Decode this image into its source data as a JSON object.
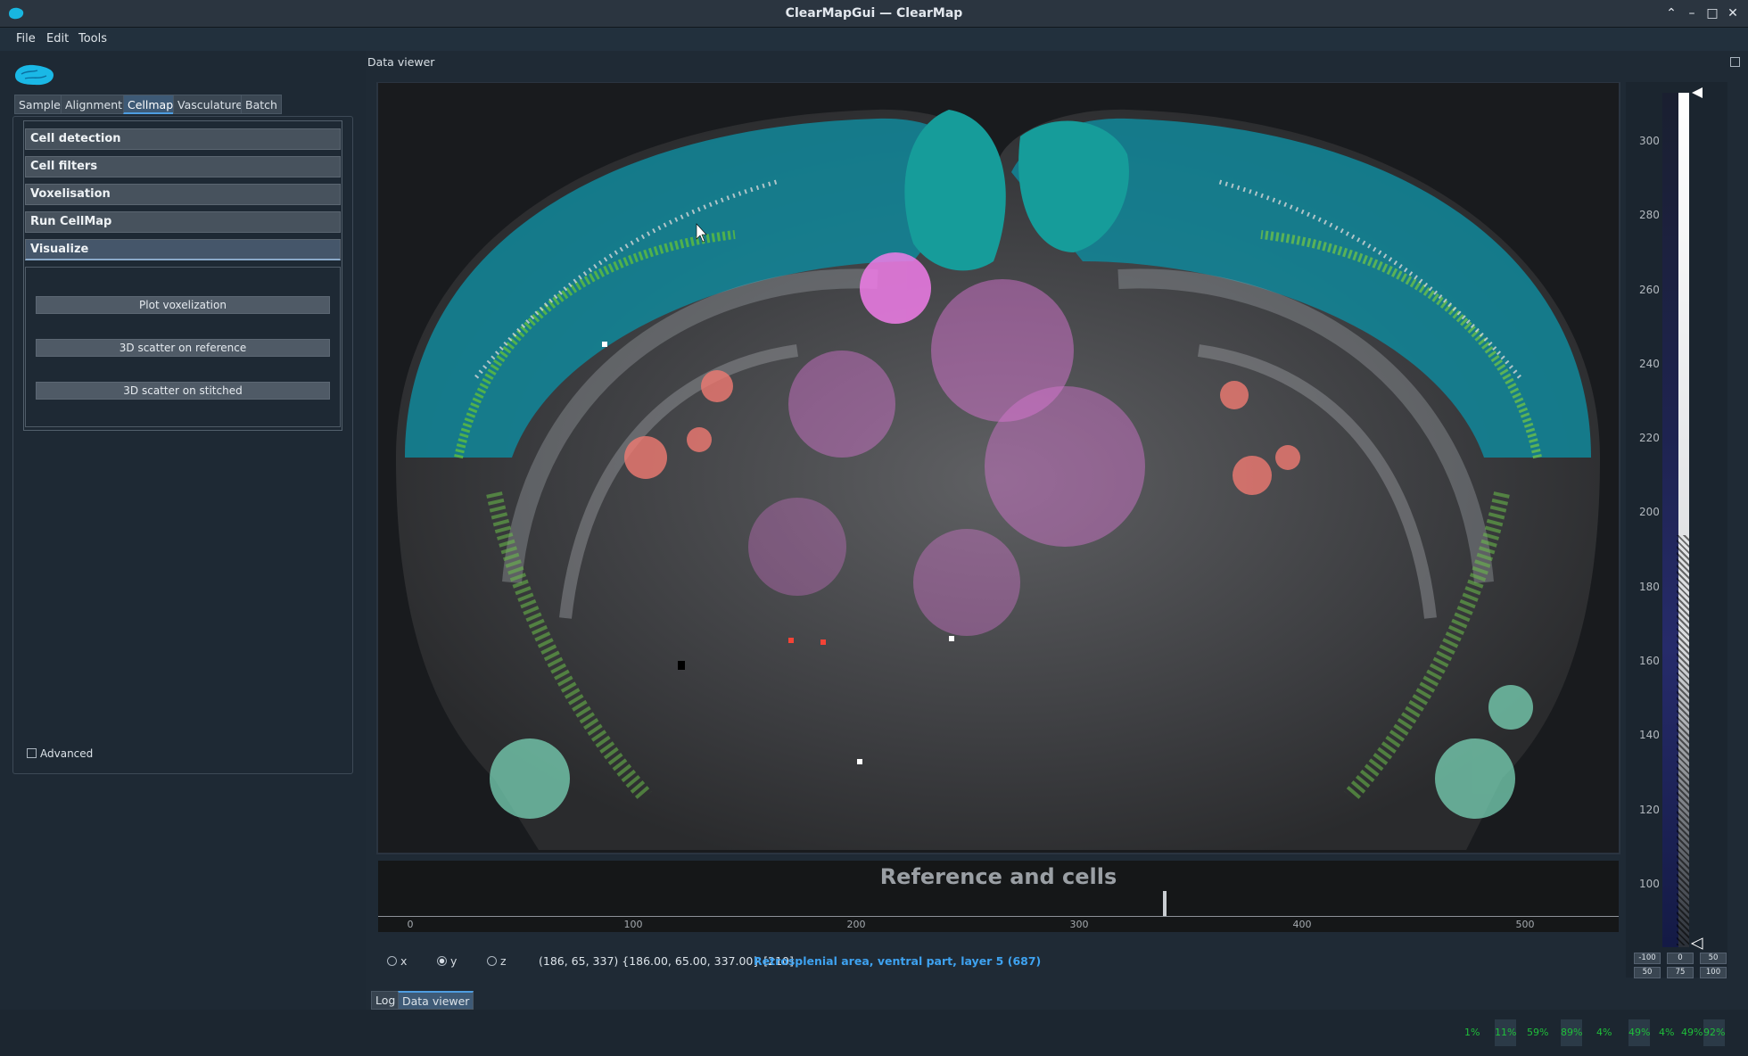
{
  "window": {
    "title": "ClearMapGui — ClearMap"
  },
  "menu": [
    "File",
    "Edit",
    "Tools"
  ],
  "tabs": [
    "Sample",
    "Alignment",
    "Cellmap",
    "Vasculature",
    "Batch"
  ],
  "active_tab": "Cellmap",
  "sections": [
    "Cell detection",
    "Cell filters",
    "Voxelisation",
    "Run CellMap",
    "Visualize"
  ],
  "visualize": {
    "buttons": [
      "Plot voxelization",
      "3D scatter on reference",
      "3D scatter on stitched"
    ]
  },
  "advanced_label": "Advanced",
  "dock": {
    "title": "Data viewer"
  },
  "plot": {
    "title": "Reference and cells",
    "xticks": [
      "0",
      "100",
      "200",
      "300",
      "400",
      "500"
    ],
    "x_values": [
      0,
      100,
      200,
      300,
      400,
      500
    ],
    "cursor_x": 337
  },
  "histogram": {
    "yticks": [
      "300",
      "280",
      "260",
      "240",
      "220",
      "200",
      "180",
      "160",
      "140",
      "120",
      "100"
    ],
    "levels_row1": [
      "-100",
      "0",
      "50"
    ],
    "levels_row2": [
      "50",
      "75",
      "100"
    ]
  },
  "axes_radio": {
    "options": [
      "x",
      "y",
      "z"
    ],
    "selected": "y"
  },
  "status": {
    "coords": "(186, 65, 337) {186.00, 65.00, 337.00} [210]",
    "region": "Retrosplenial area, ventral part, layer 5 (687)"
  },
  "bottom_tabs": [
    "Log",
    "Data viewer"
  ],
  "active_bottom_tab": "Data viewer",
  "meters": [
    "1%",
    "11%",
    "59%",
    "89%",
    "4%",
    "49%",
    "4%",
    "49%",
    "92%"
  ],
  "colors": {
    "accent": "#4e9de0",
    "link": "#3ea2f0",
    "cyan": "#129aa8",
    "green": "#6cc04a",
    "magenta": "#f07ce8",
    "salmon": "#f07a72"
  }
}
